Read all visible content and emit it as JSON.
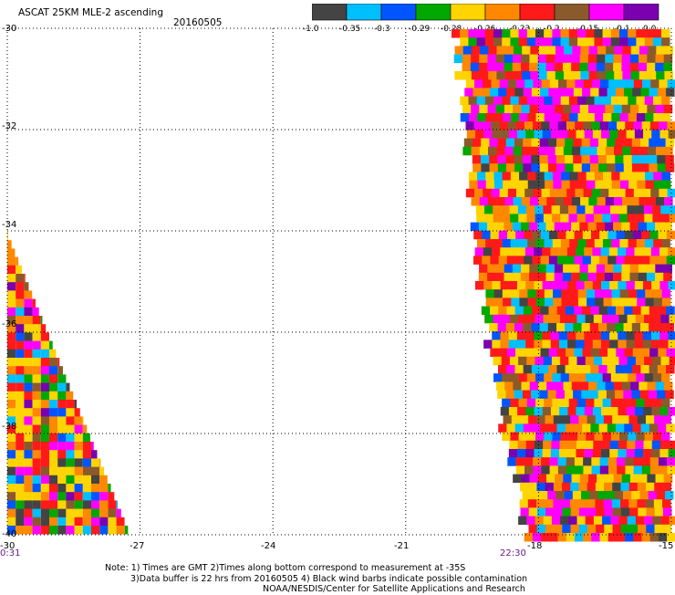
{
  "header": {
    "title": "ASCAT 25KM MLE-2 ascending",
    "date": "20160505"
  },
  "colorbar": {
    "colors": [
      "#444444",
      "#00bfff",
      "#0055ff",
      "#00a800",
      "#ffd400",
      "#ff8800",
      "#ff1a1a",
      "#8b5a2b",
      "#ff00ff",
      "#7a00b0"
    ],
    "labels": [
      "-1.0",
      "-0.35",
      "-0.3",
      "-0.29",
      "-0.28",
      "-0.26",
      "-0.23",
      "-0.2",
      "-0.15",
      "-0.1",
      "0.0"
    ]
  },
  "axes": {
    "lat_labels": [
      "-30",
      "-32",
      "-34",
      "-36",
      "-38",
      "-40"
    ],
    "lon_labels": [
      "-30",
      "-27",
      "-24",
      "-21",
      "-18",
      "-15"
    ]
  },
  "times": {
    "left": "0:31",
    "right": "22:30"
  },
  "notes": {
    "line1": "Note: 1) Times are GMT 2)Times along bottom correspond to measurement at -35S",
    "line2": "3)Data buffer is 22 hrs from 20160505 4) Black wind barbs indicate possible contamination",
    "line3": "NOAA/NESDIS/Center for Satellite Applications and Research"
  },
  "map": {
    "lat_range": [
      -40,
      -30
    ],
    "lon_range": [
      -30,
      -15
    ],
    "gridlines": true,
    "swaths": [
      {
        "name": "west-swath",
        "lon_edge_at_lat": [
          [
            -34,
            -30
          ],
          [
            -40,
            -27.2
          ]
        ],
        "side": "west"
      },
      {
        "name": "east-swath",
        "lon_edge_at_lat": [
          [
            -30,
            -19.9
          ],
          [
            -34,
            -19.5
          ],
          [
            -36,
            -19.2
          ],
          [
            -38,
            -18.8
          ],
          [
            -40,
            -18.3
          ]
        ],
        "side": "east"
      }
    ]
  }
}
